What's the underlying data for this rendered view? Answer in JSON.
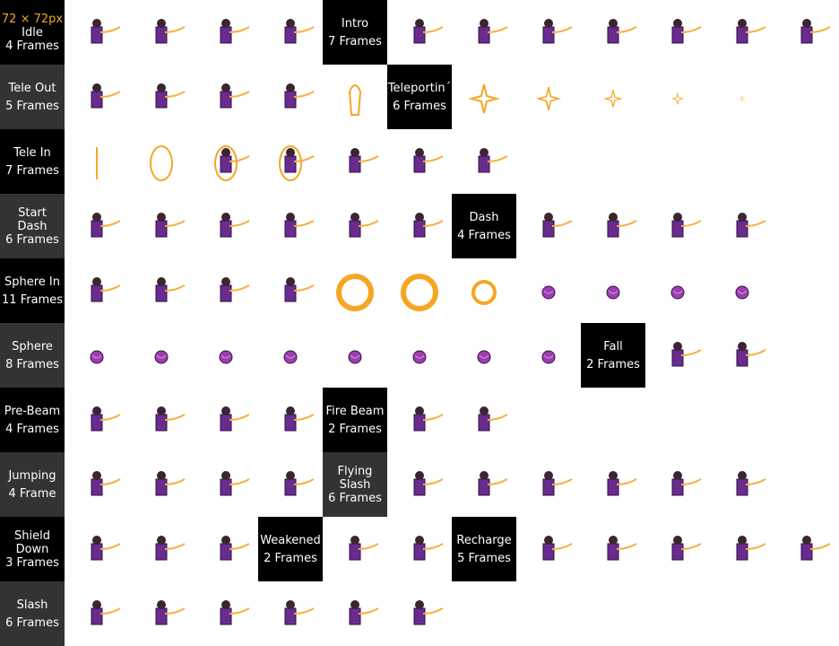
{
  "size_note": "72 × 72px",
  "labels": [
    {
      "lines": [
        "Idle",
        "4 Frames"
      ]
    },
    {
      "lines": [
        "Intro",
        "7 Frames"
      ]
    },
    {
      "lines": [
        "Tele Out",
        "5 Frames"
      ]
    },
    {
      "lines": [
        "Teleportin´",
        "6 Frames"
      ]
    },
    {
      "lines": [
        "Tele In",
        "7 Frames"
      ]
    },
    {
      "lines": [
        "Start",
        "Dash",
        "6 Frames"
      ]
    },
    {
      "lines": [
        "Dash",
        "4 Frames"
      ]
    },
    {
      "lines": [
        "Sphere In",
        "11 Frames"
      ]
    },
    {
      "lines": [
        "Sphere",
        "8 Frames"
      ]
    },
    {
      "lines": [
        "Fall",
        "2 Frames"
      ]
    },
    {
      "lines": [
        "Pre-Beam",
        "4 Frames"
      ]
    },
    {
      "lines": [
        "Fire Beam",
        "2 Frames"
      ]
    },
    {
      "lines": [
        "Jumping",
        "4 Frame"
      ]
    },
    {
      "lines": [
        "Flying",
        "Slash",
        "6 Frames"
      ]
    },
    {
      "lines": [
        "Shield",
        "Down",
        "3 Frames"
      ]
    },
    {
      "lines": [
        "Weakened",
        "2 Frames"
      ]
    },
    {
      "lines": [
        "Recharge",
        "5 Frames"
      ]
    },
    {
      "lines": [
        "Slash",
        "6 Frames"
      ]
    }
  ]
}
